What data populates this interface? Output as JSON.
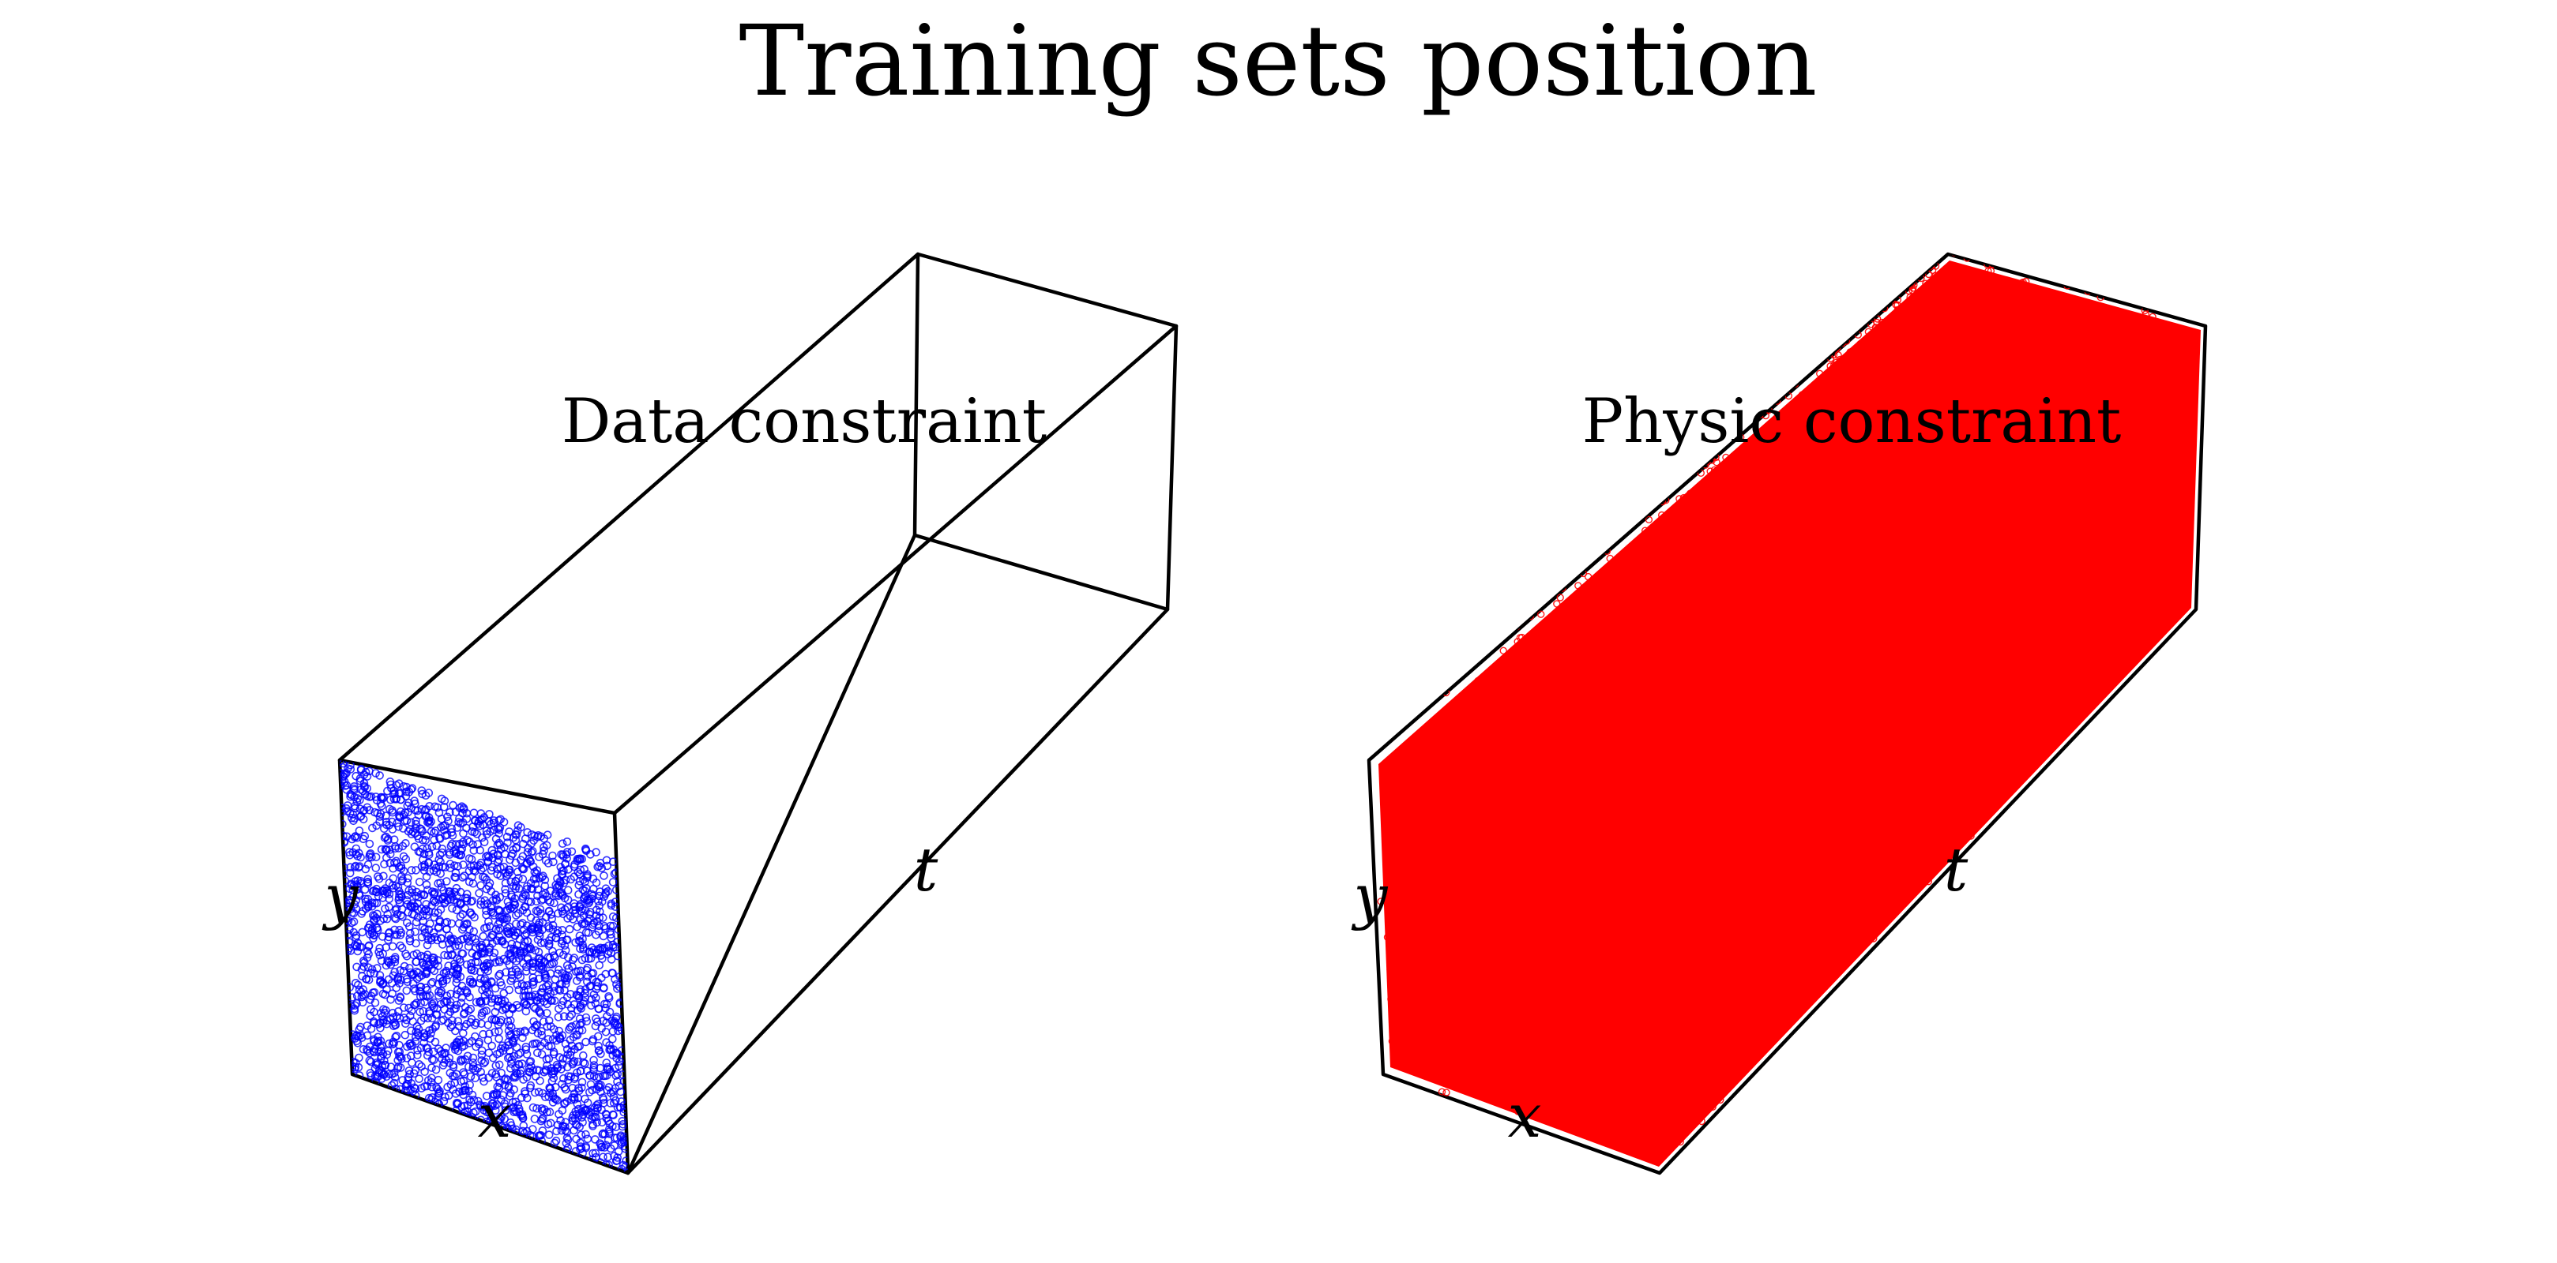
{
  "figure": {
    "title": "Training sets position"
  },
  "chart_data": [
    {
      "type": "scatter3d",
      "title": "Data constraint",
      "axes": {
        "xlabel": "x",
        "ylabel": "y",
        "tlabel": "t"
      },
      "xlim": [
        0,
        1
      ],
      "ylim": [
        0,
        1
      ],
      "tlim": [
        0,
        1
      ],
      "grid": false,
      "series": [
        {
          "color": "#0000ff",
          "marker": "open-circle",
          "region": "t = 0 face",
          "t_range": [
            0,
            0
          ]
        }
      ]
    },
    {
      "type": "scatter3d",
      "title": "Physic constraint",
      "axes": {
        "xlabel": "x",
        "ylabel": "y",
        "tlabel": "t"
      },
      "xlim": [
        0,
        1
      ],
      "ylim": [
        0,
        1
      ],
      "tlim": [
        0,
        1
      ],
      "grid": false,
      "series": [
        {
          "color": "#ff0000",
          "marker": "open-circle",
          "region": "whole domain",
          "t_range": [
            0,
            1
          ]
        }
      ]
    }
  ]
}
